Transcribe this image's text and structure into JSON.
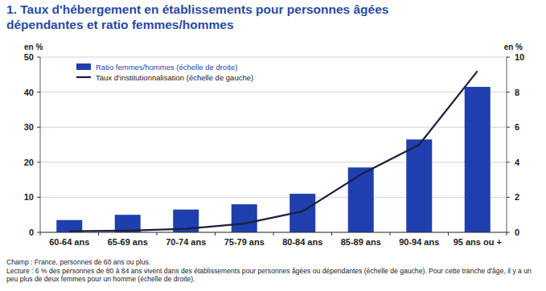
{
  "chart_data": {
    "type": "bar",
    "title": "1. Taux d'hébergement en établissements pour personnes âgées dépendantes et ratio femmes/hommes",
    "y_label": "en %",
    "y2_label": "en %",
    "categories": [
      "60-64 ans",
      "65-69 ans",
      "70-74 ans",
      "75-79 ans",
      "80-84 ans",
      "85-89 ans",
      "90-94 ans",
      "95 ans ou +"
    ],
    "series": [
      {
        "name": "Ratio femmes/hommes (échelle de droite)",
        "type": "bar",
        "axis": "y2",
        "color": "#1f3fae",
        "values": [
          0.7,
          1.0,
          1.3,
          1.6,
          2.2,
          3.7,
          5.3,
          8.3
        ]
      },
      {
        "name": "Taux d'institutionnalisation (échelle de gauche)",
        "type": "line",
        "color": "#1b1f3b",
        "values": [
          0.3,
          0.5,
          1.0,
          2.5,
          6,
          16.5,
          25,
          46
        ]
      }
    ],
    "ylim": [
      0,
      50
    ],
    "yticks": [
      0,
      10,
      20,
      30,
      40,
      50
    ],
    "y2lim": [
      0,
      10
    ],
    "y2ticks": [
      0,
      2,
      4,
      6,
      8,
      10
    ],
    "grid": true,
    "legend": "top-left",
    "notes": [
      "Champ : France, personnes de 60 ans ou plus.",
      "Lecture : 6 % des personnes de 80 à 84 ans vivent dans des établissements pour personnes âgées ou dépendantes (échelle de gauche). Pour cette tranche d'âge, il y a un peu plus de deux femmes pour un homme (échelle de droite)."
    ]
  }
}
